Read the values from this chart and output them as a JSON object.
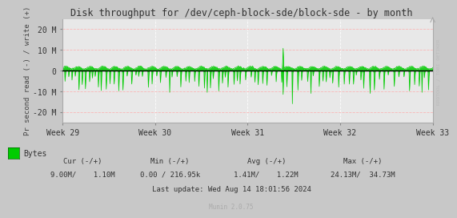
{
  "title": "Disk throughput for /dev/ceph-block-sde/block-sde - by month",
  "ylabel": "Pr second read (-) / write (+)",
  "xlabel_ticks": [
    "Week 29",
    "Week 30",
    "Week 31",
    "Week 32",
    "Week 33"
  ],
  "ylim": [
    -25000000,
    25000000
  ],
  "yticks": [
    -20000000,
    -10000000,
    0,
    10000000,
    20000000
  ],
  "ytick_labels": [
    "-20 M",
    "-10 M",
    "0",
    "10 M",
    "20 M"
  ],
  "bg_color": "#c8c8c8",
  "plot_bg_color": "#e8e8e8",
  "grid_color_white": "#ffffff",
  "grid_color_pink": "#ffaaaa",
  "line_color": "#00cc00",
  "fill_color": "#00cc00",
  "zero_line_color": "#000000",
  "legend_label": "Bytes",
  "legend_color": "#00cc00",
  "last_update": "Last update: Wed Aug 14 18:01:56 2024",
  "munin_version": "Munin 2.0.75",
  "right_label": "RRDTOOL / TOBI OETIKER",
  "cur_header": "Cur (-/+)",
  "cur_val": "9.00M/    1.10M",
  "min_header": "Min (-/+)",
  "min_val": "0.00 / 216.95k",
  "avg_header": "Avg (-/+)",
  "avg_val": "1.41M/    1.22M",
  "max_header": "Max (-/+)",
  "max_val": "24.13M/  34.73M",
  "num_points": 800
}
